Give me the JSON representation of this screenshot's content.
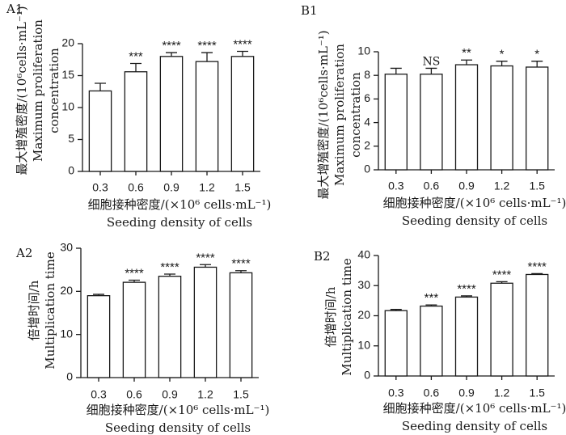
{
  "chart_data": [
    {
      "id": "A1",
      "type": "bar",
      "panel_label": "A1",
      "categories": [
        "0.3",
        "0.6",
        "0.9",
        "1.2",
        "1.5"
      ],
      "values": [
        12.6,
        15.6,
        18.0,
        17.2,
        18.0
      ],
      "errors": [
        1.2,
        1.3,
        0.6,
        1.4,
        0.8
      ],
      "significance": [
        "",
        "***",
        "****",
        "****",
        "****"
      ],
      "ylim": [
        0,
        20
      ],
      "yticks": [
        "0",
        "5",
        "10",
        "15",
        "20"
      ],
      "ylabel": [
        "最大增殖密度/(10⁶cells·mL⁻¹)",
        "Maximum proliferation",
        "concentration"
      ],
      "xlabel": [
        "细胞接种密度/(×10⁶ cells·mL⁻¹)",
        "Seeding density of cells"
      ]
    },
    {
      "id": "B1",
      "type": "bar",
      "panel_label": "B1",
      "categories": [
        "0.3",
        "0.6",
        "0.9",
        "1.2",
        "1.5"
      ],
      "values": [
        8.1,
        8.1,
        8.9,
        8.8,
        8.7
      ],
      "errors": [
        0.5,
        0.5,
        0.4,
        0.4,
        0.5
      ],
      "significance": [
        "",
        "NS",
        "**",
        "*",
        "*"
      ],
      "ylim": [
        0,
        10
      ],
      "yticks": [
        "0",
        "2",
        "4",
        "6",
        "8",
        "10"
      ],
      "ylabel": [
        "最大增殖密度/(10⁶cells·mL⁻¹)",
        "Maximum proliferation",
        "concentration"
      ],
      "xlabel": [
        "细胞接种密度/(×10⁶ cells·mL⁻¹)",
        "Seeding density of cells"
      ]
    },
    {
      "id": "A2",
      "type": "bar",
      "panel_label": "A2",
      "categories": [
        "0.3",
        "0.6",
        "0.9",
        "1.2",
        "1.5"
      ],
      "values": [
        19.0,
        22.1,
        23.5,
        25.6,
        24.3
      ],
      "errors": [
        0.3,
        0.5,
        0.5,
        0.6,
        0.5
      ],
      "significance": [
        "",
        "****",
        "****",
        "****",
        "****"
      ],
      "ylim": [
        0,
        30
      ],
      "yticks": [
        "0",
        "10",
        "20",
        "30"
      ],
      "ylabel": [
        "倍增时间/h",
        "Multiplication time"
      ],
      "xlabel": [
        "细胞接种密度/(×10⁶ cells·mL⁻¹)",
        "Seeding density of cells"
      ]
    },
    {
      "id": "B2",
      "type": "bar",
      "panel_label": "B2",
      "categories": [
        "0.3",
        "0.6",
        "0.9",
        "1.2",
        "1.5"
      ],
      "values": [
        21.7,
        23.2,
        26.2,
        30.8,
        33.7
      ],
      "errors": [
        0.4,
        0.4,
        0.4,
        0.5,
        0.3
      ],
      "significance": [
        "",
        "***",
        "****",
        "****",
        "****"
      ],
      "ylim": [
        0,
        40
      ],
      "yticks": [
        "0",
        "10",
        "20",
        "30",
        "40"
      ],
      "ylabel": [
        "倍增时间/h",
        "Multiplication time"
      ],
      "xlabel": [
        "细胞接种密度/(×10⁶ cells·mL⁻¹)",
        "Seeding density of cells"
      ]
    }
  ]
}
